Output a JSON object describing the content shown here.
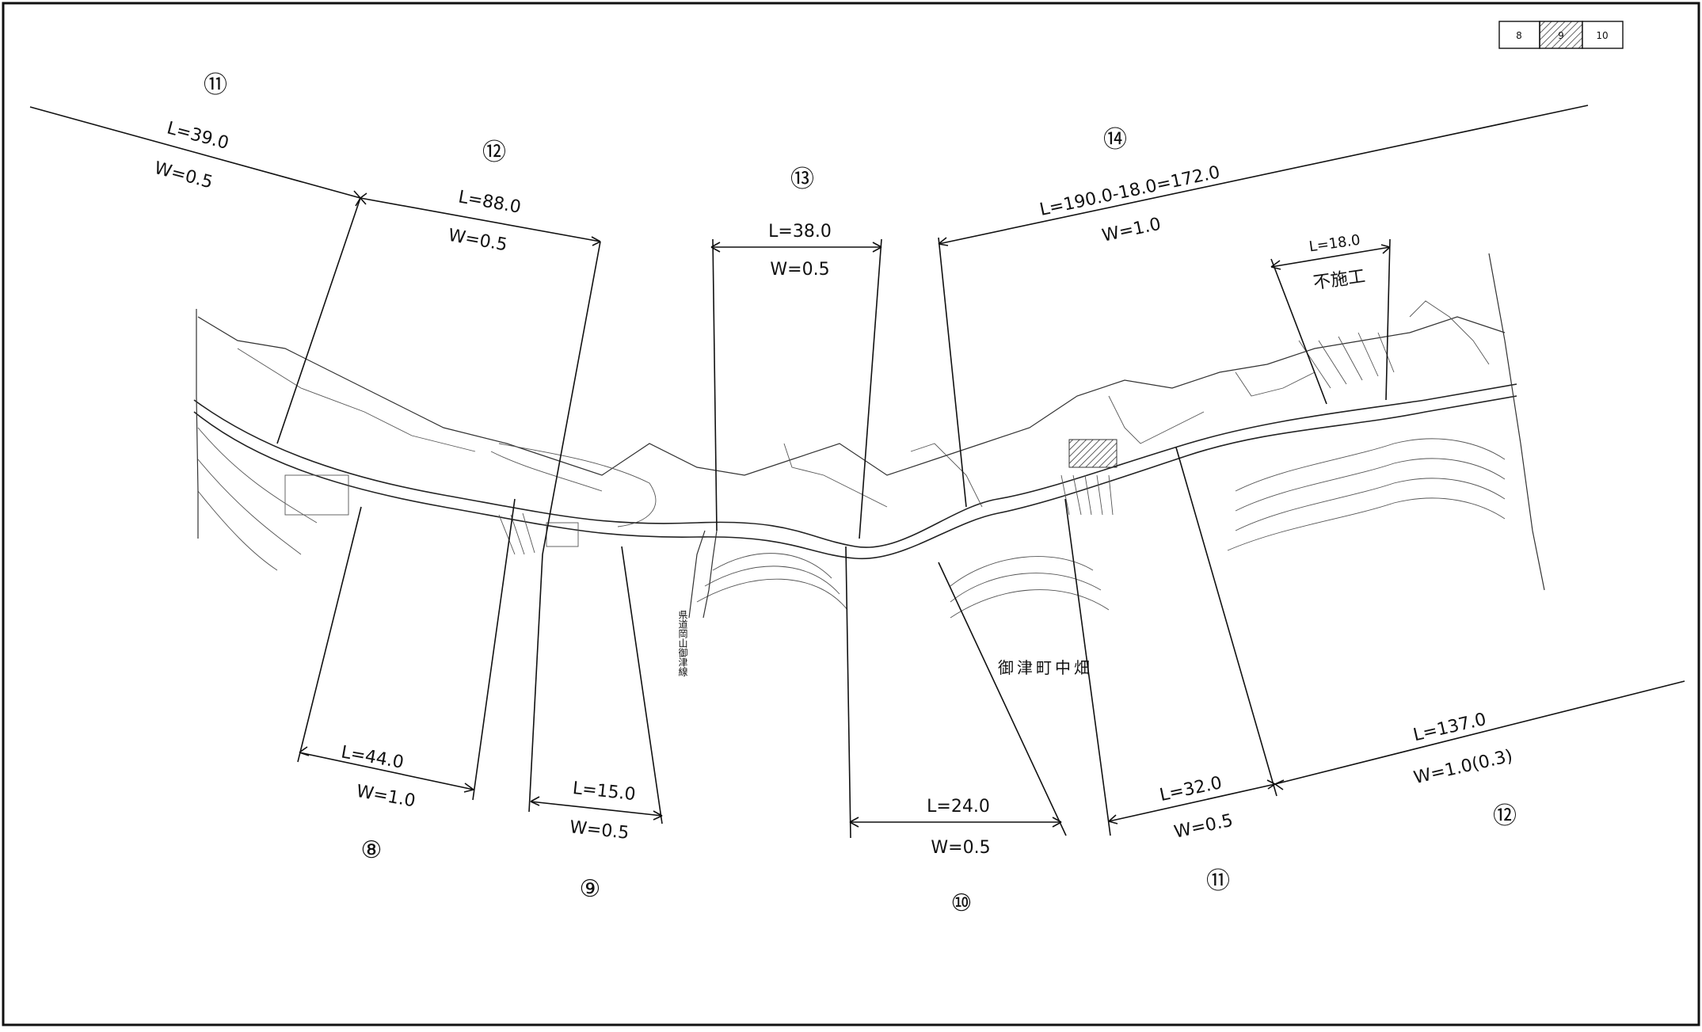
{
  "legend": {
    "cells": [
      "8",
      "9",
      "10"
    ]
  },
  "segments": [
    {
      "id": "s11_top",
      "number": "⑪",
      "length": "L=39.0",
      "width": "W=0.5"
    },
    {
      "id": "s12_top",
      "number": "⑫",
      "length": "L=88.0",
      "width": "W=0.5"
    },
    {
      "id": "s13",
      "number": "⑬",
      "length": "L=38.0",
      "width": "W=0.5"
    },
    {
      "id": "s14",
      "number": "⑭",
      "length": "L=190.0-18.0=172.0",
      "width": "W=1.0"
    },
    {
      "id": "s8",
      "number": "⑧",
      "length": "L=44.0",
      "width": "W=1.0"
    },
    {
      "id": "s9",
      "number": "⑨",
      "length": "L=15.0",
      "width": "W=0.5"
    },
    {
      "id": "s10",
      "number": "⑩",
      "length": "L=24.0",
      "width": "W=0.5"
    },
    {
      "id": "s11_bottom",
      "number": "⑪",
      "length": "L=32.0",
      "width": "W=0.5"
    },
    {
      "id": "s12_bottom",
      "number": "⑫",
      "length": "L=137.0",
      "width": "W=1.0(0.3)"
    }
  ],
  "excluded": {
    "length": "L=18.0",
    "note": "不施工"
  },
  "place_label": "御津町中畑",
  "road_label": "県道岡山御津線"
}
